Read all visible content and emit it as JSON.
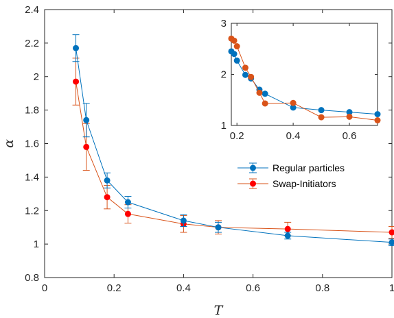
{
  "colors": {
    "regular": "#0072BD",
    "swap_main": "#FF0000",
    "swap_inset": "#D95319",
    "axis": "#262626",
    "errbar": "#555555"
  },
  "chart_data": [
    {
      "type": "line",
      "role": "main",
      "xlabel": "T",
      "ylabel": "α",
      "xlim": [
        0,
        1
      ],
      "ylim": [
        0.8,
        2.4
      ],
      "xticks": [
        0,
        0.2,
        0.4,
        0.6,
        0.8,
        1
      ],
      "xtick_labels": [
        "0",
        "0.2",
        "0.4",
        "0.6",
        "0.8",
        "1"
      ],
      "yticks": [
        0.8,
        1,
        1.2,
        1.4,
        1.6,
        1.8,
        2,
        2.2,
        2.4
      ],
      "ytick_labels": [
        "0.8",
        "1",
        "1.2",
        "1.4",
        "1.6",
        "1.8",
        "2",
        "2.2",
        "2.4"
      ],
      "legend_position": "center-right",
      "series": [
        {
          "name": "Regular particles",
          "x": [
            0.09,
            0.12,
            0.18,
            0.24,
            0.4,
            0.5,
            0.7,
            1.0
          ],
          "y": [
            2.17,
            1.74,
            1.38,
            1.25,
            1.14,
            1.1,
            1.05,
            1.01
          ],
          "err": [
            0.08,
            0.1,
            0.045,
            0.035,
            0.035,
            0.03,
            0.02,
            0.02
          ]
        },
        {
          "name": "Swap-Initiators",
          "x": [
            0.09,
            0.12,
            0.18,
            0.24,
            0.4,
            0.5,
            0.7,
            1.0
          ],
          "y": [
            1.97,
            1.58,
            1.28,
            1.18,
            1.12,
            1.1,
            1.09,
            1.07
          ],
          "err": [
            0.14,
            0.14,
            0.07,
            0.055,
            0.05,
            0.04,
            0.04,
            0.035
          ]
        }
      ]
    },
    {
      "type": "line",
      "role": "inset",
      "xlim": [
        0.18,
        0.7
      ],
      "ylim": [
        1,
        3
      ],
      "xticks": [
        0.2,
        0.4,
        0.6
      ],
      "xtick_labels": [
        "0.2",
        "0.4",
        "0.6"
      ],
      "yticks": [
        1,
        2,
        3
      ],
      "ytick_labels": [
        "1",
        "2",
        "3"
      ],
      "series": [
        {
          "name": "Regular particles",
          "x": [
            0.18,
            0.19,
            0.2,
            0.23,
            0.25,
            0.28,
            0.3,
            0.4,
            0.5,
            0.6,
            0.7
          ],
          "y": [
            2.45,
            2.4,
            2.27,
            1.99,
            1.92,
            1.7,
            1.62,
            1.35,
            1.3,
            1.26,
            1.22
          ]
        },
        {
          "name": "Swap-Initiators",
          "x": [
            0.18,
            0.19,
            0.2,
            0.23,
            0.25,
            0.28,
            0.3,
            0.4,
            0.5,
            0.6,
            0.7
          ],
          "y": [
            2.7,
            2.66,
            2.55,
            2.13,
            1.95,
            1.64,
            1.43,
            1.44,
            1.16,
            1.17,
            1.1
          ]
        }
      ]
    }
  ],
  "legend": {
    "items": [
      {
        "label": "Regular particles"
      },
      {
        "label": "Swap-Initiators"
      }
    ]
  }
}
